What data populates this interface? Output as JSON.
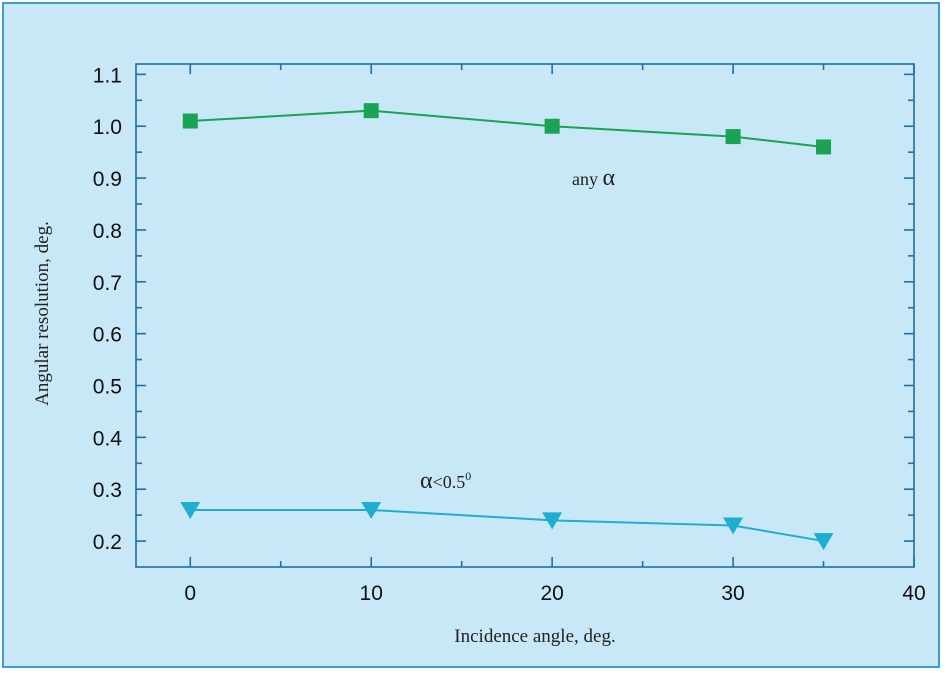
{
  "chart_data": {
    "type": "line",
    "xlabel": "Incidence angle, deg.",
    "ylabel": "Angular resolution, deg.",
    "xlim": [
      -3,
      40
    ],
    "ylim": [
      0.15,
      1.12
    ],
    "x_ticks": [
      0,
      10,
      20,
      30,
      40
    ],
    "y_ticks": [
      0.2,
      0.3,
      0.4,
      0.5,
      0.6,
      0.7,
      0.8,
      0.9,
      1.0,
      1.1
    ],
    "x_tick_labels": [
      "0",
      "10",
      "20",
      "30",
      "40"
    ],
    "y_tick_labels": [
      "0.2",
      "0.3",
      "0.4",
      "0.5",
      "0.6",
      "0.7",
      "0.8",
      "0.9",
      "1.0",
      "1.1"
    ],
    "grid": false,
    "series": [
      {
        "name": "any α",
        "marker": "square",
        "color": "#1aa354",
        "x": [
          0,
          10,
          20,
          30,
          35
        ],
        "y": [
          1.01,
          1.03,
          1.0,
          0.98,
          0.96
        ]
      },
      {
        "name": "α<0.5⁰",
        "marker": "triangle-down",
        "color": "#1eaed0",
        "x": [
          0,
          10,
          20,
          30,
          35
        ],
        "y": [
          0.26,
          0.26,
          0.24,
          0.23,
          0.2
        ]
      }
    ],
    "annotations": [
      {
        "text_prefix": "any ",
        "symbol": "α",
        "suffix": "",
        "superscript": "",
        "series": 0
      },
      {
        "text_prefix": "",
        "symbol": "α",
        "suffix": "<0.5",
        "superscript": "0",
        "series": 1
      }
    ]
  }
}
